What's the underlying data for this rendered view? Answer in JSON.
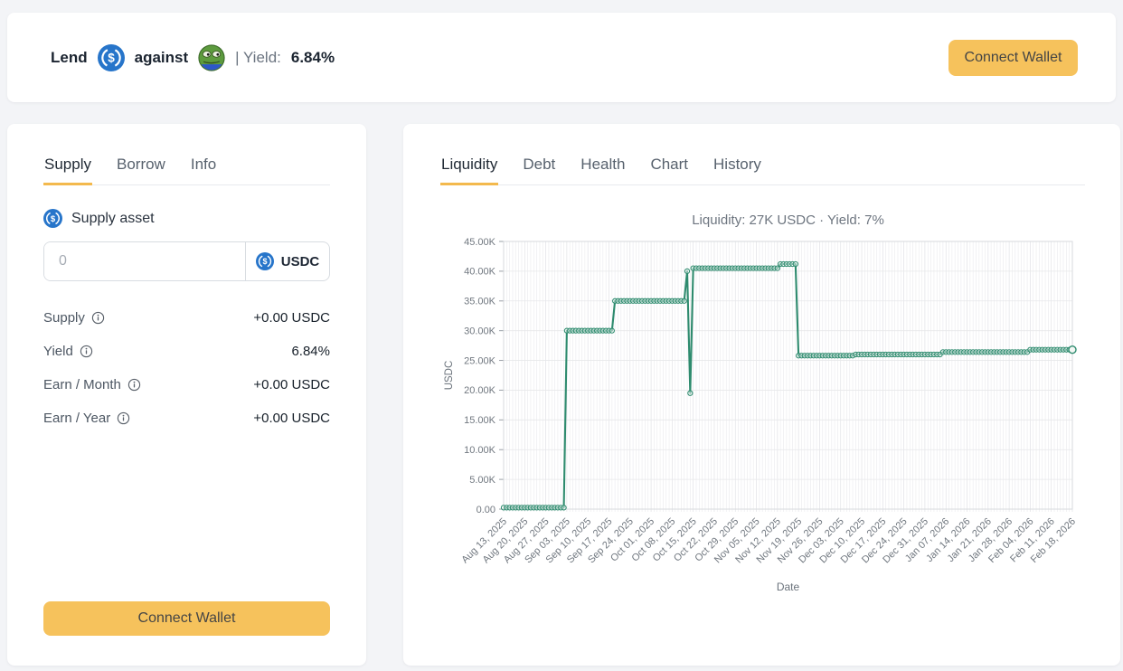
{
  "colors": {
    "accent_button": "#f6c25c",
    "tab_underline": "#f3b94d",
    "line_green": "#2e8b6e",
    "usdc_blue": "#2775ca",
    "page_bg": "#f3f4f7"
  },
  "header": {
    "lend_label": "Lend",
    "lend_asset_icon": "usdc-icon",
    "against_label": "against",
    "collateral_asset_icon": "pepe-icon",
    "yield_prefix": "| Yield:",
    "yield_value": "6.84%",
    "connect_wallet_label": "Connect Wallet"
  },
  "supply_panel": {
    "tabs": [
      {
        "label": "Supply",
        "active": true
      },
      {
        "label": "Borrow",
        "active": false
      },
      {
        "label": "Info",
        "active": false
      }
    ],
    "supply_asset_label": "Supply asset",
    "amount_input": {
      "value": "",
      "placeholder": "0"
    },
    "token_selector": {
      "label": "USDC",
      "icon": "usdc-icon"
    },
    "stats": [
      {
        "label": "Supply",
        "value": "+0.00 USDC"
      },
      {
        "label": "Yield",
        "value": "6.84%"
      },
      {
        "label": "Earn / Month",
        "value": "+0.00 USDC"
      },
      {
        "label": "Earn / Year",
        "value": "+0.00 USDC"
      }
    ],
    "connect_wallet_label": "Connect Wallet"
  },
  "market_panel": {
    "tabs": [
      {
        "label": "Liquidity",
        "active": true
      },
      {
        "label": "Debt",
        "active": false
      },
      {
        "label": "Health",
        "active": false
      },
      {
        "label": "Chart",
        "active": false
      },
      {
        "label": "History",
        "active": false
      }
    ]
  },
  "chart_data": {
    "type": "line",
    "title": "Liquidity: 27K USDC · Yield: 7%",
    "xlabel": "Date",
    "ylabel": "USDC",
    "ylim": [
      0,
      45000
    ],
    "grid": true,
    "legend": false,
    "line_color": "#2e8b6e",
    "y_tick_labels": [
      "0.00",
      "5.00K",
      "10.00K",
      "15.00K",
      "20.00K",
      "25.00K",
      "30.00K",
      "35.00K",
      "40.00K",
      "45.00K"
    ],
    "x_tick_interval_days": 7,
    "x_tick_labels": [
      "Aug 13, 2025",
      "Aug 20, 2025",
      "Aug 27, 2025",
      "Sep 03, 2025",
      "Sep 10, 2025",
      "Sep 17, 2025",
      "Sep 24, 2025",
      "Oct 01, 2025",
      "Oct 08, 2025",
      "Oct 15, 2025",
      "Oct 22, 2025",
      "Oct 29, 2025",
      "Nov 05, 2025",
      "Nov 12, 2025",
      "Nov 19, 2025",
      "Nov 26, 2025",
      "Dec 03, 2025",
      "Dec 10, 2025",
      "Dec 17, 2025",
      "Dec 24, 2025",
      "Dec 31, 2025",
      "Jan 07, 2026",
      "Jan 14, 2026",
      "Jan 21, 2026",
      "Jan 28, 2026",
      "Feb 04, 2026",
      "Feb 11, 2026",
      "Feb 18, 2026"
    ],
    "segments": [
      {
        "from": "Aug 13, 2025",
        "to": "Sep 02, 2025",
        "from_day": 0,
        "to_day": 20,
        "value": 250
      },
      {
        "from": "Sep 03, 2025",
        "to": "Sep 18, 2025",
        "from_day": 21,
        "to_day": 36,
        "value": 30000
      },
      {
        "from": "Sep 19, 2025",
        "to": "Oct 12, 2025",
        "from_day": 37,
        "to_day": 60,
        "value": 35000
      },
      {
        "from": "Oct 13, 2025",
        "to": "Oct 13, 2025",
        "from_day": 61,
        "to_day": 61,
        "value": 40000
      },
      {
        "from": "Oct 14, 2025",
        "to": "Oct 14, 2025",
        "from_day": 62,
        "to_day": 62,
        "value": 19500
      },
      {
        "from": "Oct 15, 2025",
        "to": "Nov 12, 2025",
        "from_day": 63,
        "to_day": 91,
        "value": 40500
      },
      {
        "from": "Nov 13, 2025",
        "to": "Nov 18, 2025",
        "from_day": 92,
        "to_day": 97,
        "value": 41200
      },
      {
        "from": "Nov 19, 2025",
        "to": "Dec 07, 2025",
        "from_day": 98,
        "to_day": 116,
        "value": 25800
      },
      {
        "from": "Dec 08, 2025",
        "to": "Jan 05, 2026",
        "from_day": 117,
        "to_day": 145,
        "value": 26000
      },
      {
        "from": "Jan 06, 2026",
        "to": "Feb 03, 2026",
        "from_day": 146,
        "to_day": 174,
        "value": 26400
      },
      {
        "from": "Feb 04, 2026",
        "to": "Feb 18, 2026",
        "from_day": 175,
        "to_day": 189,
        "value": 26800
      }
    ]
  }
}
